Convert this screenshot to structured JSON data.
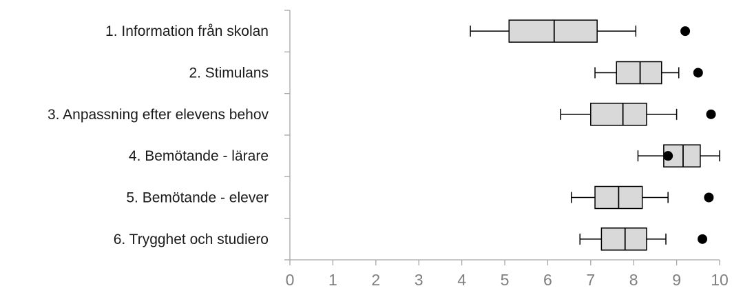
{
  "chart_data": {
    "type": "boxplot",
    "orientation": "horizontal",
    "categories": [
      "1. Information från skolan",
      "2. Stimulans",
      "3. Anpassning efter elevens behov",
      "4. Bemötande - lärare",
      "5. Bemötande - elever",
      "6. Trygghet och studiero"
    ],
    "boxes": [
      {
        "min": 4.2,
        "q1": 5.1,
        "median": 6.15,
        "q3": 7.15,
        "max": 8.05,
        "point": 9.2
      },
      {
        "min": 7.1,
        "q1": 7.6,
        "median": 8.15,
        "q3": 8.65,
        "max": 9.05,
        "point": 9.5
      },
      {
        "min": 6.3,
        "q1": 7.0,
        "median": 7.75,
        "q3": 8.3,
        "max": 9.0,
        "point": 9.8
      },
      {
        "min": 8.1,
        "q1": 8.7,
        "median": 9.15,
        "q3": 9.55,
        "max": 10.0,
        "point": 8.8
      },
      {
        "min": 6.55,
        "q1": 7.1,
        "median": 7.65,
        "q3": 8.2,
        "max": 8.8,
        "point": 9.75
      },
      {
        "min": 6.75,
        "q1": 7.25,
        "median": 7.8,
        "q3": 8.3,
        "max": 8.75,
        "point": 9.6
      }
    ],
    "xlim": [
      0,
      10
    ],
    "xticks": [
      "0",
      "1",
      "2",
      "3",
      "4",
      "5",
      "6",
      "7",
      "8",
      "9",
      "10"
    ],
    "colors": {
      "box_fill": "#d9d9d9",
      "stroke": "#000000",
      "axis": "#a6a6a6",
      "tick_text": "#7f7f7f",
      "point": "#000000"
    }
  }
}
